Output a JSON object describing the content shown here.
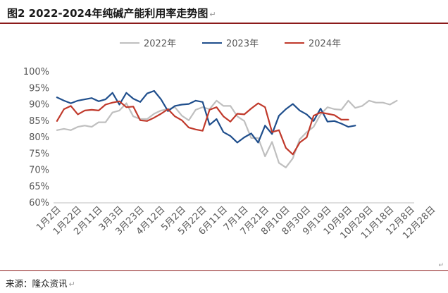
{
  "header": {
    "title": "图2   2022-2024年纯碱产能利用率走势图",
    "edit_mark": "↵"
  },
  "source": {
    "text": "来源：隆众资讯",
    "edit_mark": "↵"
  },
  "colors": {
    "2022": "#bfbfbf",
    "2023": "#1f4e8c",
    "2024": "#c0392b",
    "border": "#8b1a1a"
  },
  "chart_data": {
    "type": "line",
    "title": "",
    "xlabel": "",
    "ylabel": "",
    "ylim": [
      60,
      100
    ],
    "yticks": [
      60,
      65,
      70,
      75,
      80,
      85,
      90,
      95,
      100
    ],
    "ytick_labels": [
      "60%",
      "65%",
      "70%",
      "75%",
      "80%",
      "85%",
      "90%",
      "95%",
      "100%"
    ],
    "x_count": 52,
    "x_tick_labels": [
      "1月2日",
      "1月22日",
      "2月11日",
      "3月3日",
      "3月23日",
      "4月12日",
      "5月2日",
      "5月22日",
      "6月11日",
      "7月1日",
      "7月21日",
      "8月10日",
      "8月30日",
      "9月19日",
      "10月9日",
      "10月29日",
      "11月18日",
      "12月8日",
      "12月28日"
    ],
    "x_tick_step": 3,
    "legend_position": "top-center",
    "grid": false,
    "series": [
      {
        "name": "2022年",
        "color": "#bfbfbf",
        "values": [
          82.2,
          82.6,
          82.2,
          83.2,
          83.6,
          83.2,
          84.6,
          84.6,
          87.6,
          88.2,
          90.4,
          86.4,
          85.6,
          85.6,
          87.2,
          88.2,
          88.6,
          89.2,
          86.6,
          85.2,
          88.4,
          89.2,
          88.6,
          91.2,
          89.6,
          89.6,
          86.4,
          85.0,
          79.8,
          79.8,
          74.2,
          78.6,
          72.2,
          70.8,
          73.6,
          79.4,
          81.6,
          83.2,
          87.0,
          89.2,
          88.6,
          88.4,
          91.2,
          89.0,
          89.6,
          91.2,
          90.6,
          90.6,
          90.0,
          91.2,
          null,
          null
        ]
      },
      {
        "name": "2023年",
        "color": "#1f4e8c",
        "values": [
          92.2,
          91.2,
          90.4,
          91.2,
          91.6,
          92.0,
          91.0,
          91.6,
          93.6,
          90.0,
          93.6,
          91.8,
          90.8,
          93.4,
          94.2,
          91.6,
          88.0,
          89.6,
          90.0,
          90.2,
          91.2,
          90.8,
          83.8,
          85.6,
          81.6,
          80.4,
          78.4,
          80.0,
          81.2,
          78.4,
          83.6,
          81.0,
          86.6,
          88.6,
          90.2,
          88.2,
          87.0,
          85.0,
          88.8,
          84.8,
          85.0,
          84.2,
          83.2,
          83.6,
          null,
          null,
          null,
          null,
          null,
          null,
          null,
          null
        ]
      },
      {
        "name": "2024年",
        "color": "#c0392b",
        "values": [
          85.0,
          88.6,
          89.6,
          87.0,
          88.2,
          88.4,
          88.2,
          90.0,
          90.6,
          91.0,
          89.2,
          89.4,
          85.2,
          85.0,
          86.0,
          87.2,
          88.6,
          86.4,
          85.2,
          83.0,
          82.4,
          82.0,
          88.4,
          89.2,
          86.4,
          84.8,
          87.2,
          87.0,
          88.8,
          90.4,
          89.2,
          81.6,
          82.2,
          76.8,
          74.8,
          78.4,
          80.0,
          86.6,
          87.6,
          87.2,
          86.8,
          85.4,
          85.4,
          null,
          null,
          null,
          null,
          null,
          null,
          null,
          null,
          null
        ]
      }
    ]
  }
}
